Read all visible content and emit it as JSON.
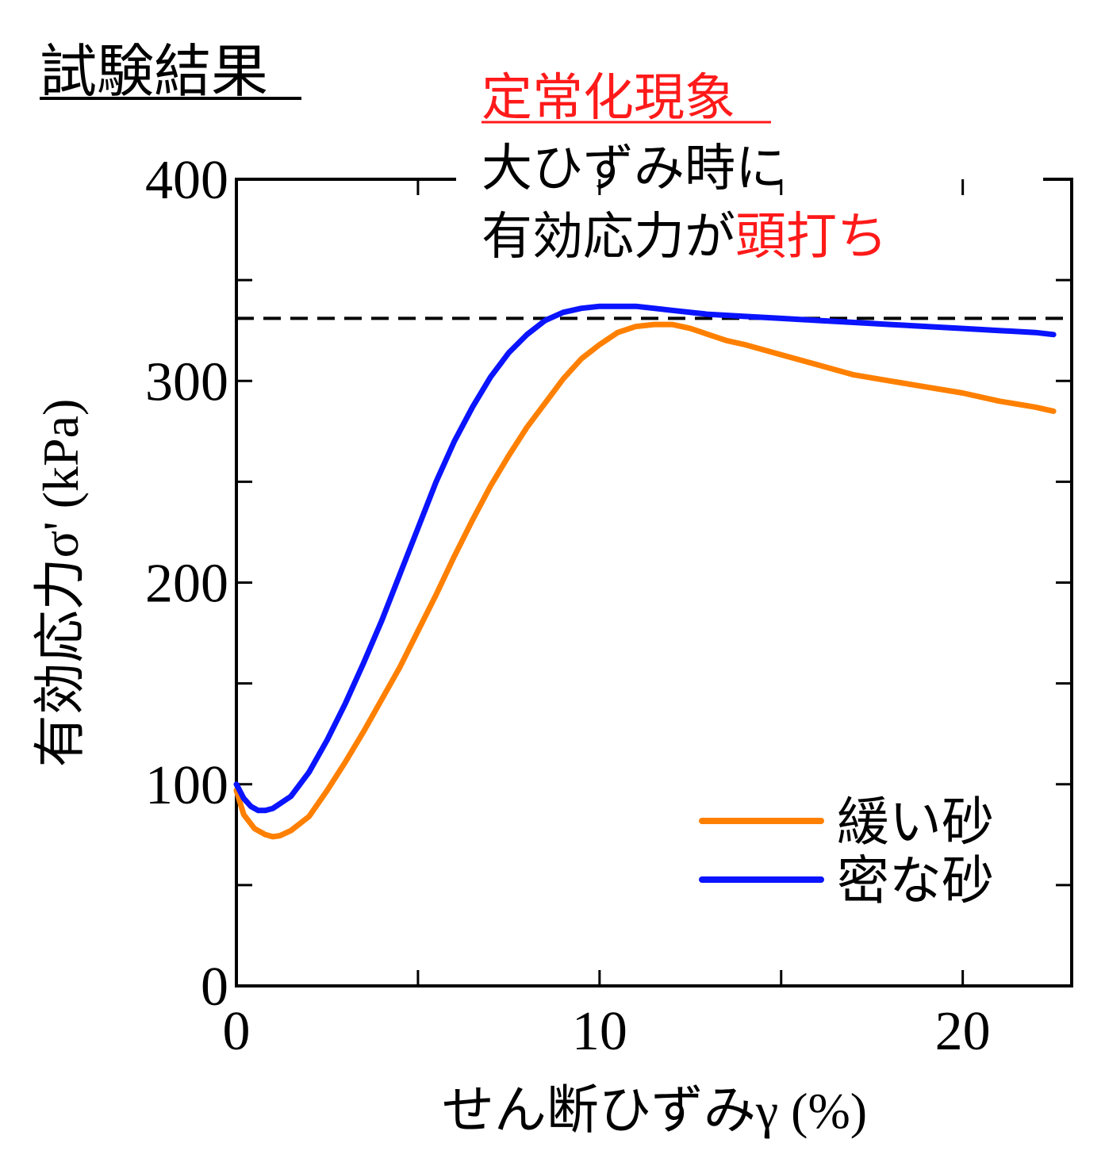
{
  "chart_data": {
    "type": "line",
    "title": "試験結果",
    "annotation": {
      "heading": "定常化現象",
      "line1": "大ひずみ時に",
      "line2_black": "有効応力が",
      "line2_red": "頭打ち"
    },
    "xlabel": {
      "jp": "せん断ひずみ",
      "sym": "γ (%)"
    },
    "ylabel": {
      "jp": "有効応力",
      "sym": "σ' (kPa)"
    },
    "xlim": [
      0,
      23
    ],
    "ylim": [
      0,
      400
    ],
    "x_ticks": [
      0,
      10,
      20
    ],
    "x_minor_ticks": [
      5,
      15
    ],
    "y_ticks": [
      0,
      100,
      200,
      300,
      400
    ],
    "y_minor_ticks": [
      50,
      150,
      250,
      350
    ],
    "reference_line": {
      "y": 331,
      "style": "dashed"
    },
    "legend_position": "bottom-right",
    "series": [
      {
        "name": "緩い砂",
        "color": "#ff8000",
        "x": [
          0,
          0.2,
          0.5,
          0.8,
          1.0,
          1.2,
          1.5,
          2.0,
          2.5,
          3.0,
          3.5,
          4.0,
          4.5,
          5.0,
          5.5,
          6.0,
          6.5,
          7.0,
          7.5,
          8.0,
          8.5,
          9.0,
          9.5,
          10.0,
          10.5,
          11.0,
          11.5,
          12.0,
          12.5,
          13.0,
          13.5,
          14.0,
          15.0,
          16.0,
          17.0,
          18.0,
          19.0,
          20.0,
          21.0,
          22.0,
          22.5
        ],
        "values": [
          97,
          85,
          78,
          75,
          74,
          74.5,
          77,
          84,
          97,
          111,
          126,
          142,
          158,
          176,
          194,
          213,
          231,
          248,
          263,
          277,
          289,
          301,
          311,
          318,
          324,
          327,
          328,
          328,
          326,
          323,
          320,
          318,
          313,
          308,
          303,
          300,
          297,
          294,
          290,
          287,
          285
        ]
      },
      {
        "name": "密な砂",
        "color": "#0a14ff",
        "x": [
          0,
          0.2,
          0.4,
          0.6,
          0.8,
          1.0,
          1.5,
          2.0,
          2.5,
          3.0,
          3.5,
          4.0,
          4.5,
          5.0,
          5.5,
          6.0,
          6.5,
          7.0,
          7.5,
          8.0,
          8.5,
          9.0,
          9.5,
          10.0,
          10.5,
          11.0,
          11.5,
          12.0,
          13.0,
          14.0,
          15.0,
          16.0,
          17.0,
          18.0,
          19.0,
          20.0,
          21.0,
          22.0,
          22.5
        ],
        "values": [
          100,
          93,
          89,
          87,
          87,
          88,
          94,
          106,
          122,
          140,
          160,
          181,
          204,
          227,
          250,
          270,
          287,
          302,
          314,
          323,
          330,
          334,
          336,
          337,
          337,
          337,
          336,
          335,
          333,
          332,
          331,
          330,
          329,
          328,
          327,
          326,
          325,
          324,
          323
        ]
      }
    ]
  }
}
